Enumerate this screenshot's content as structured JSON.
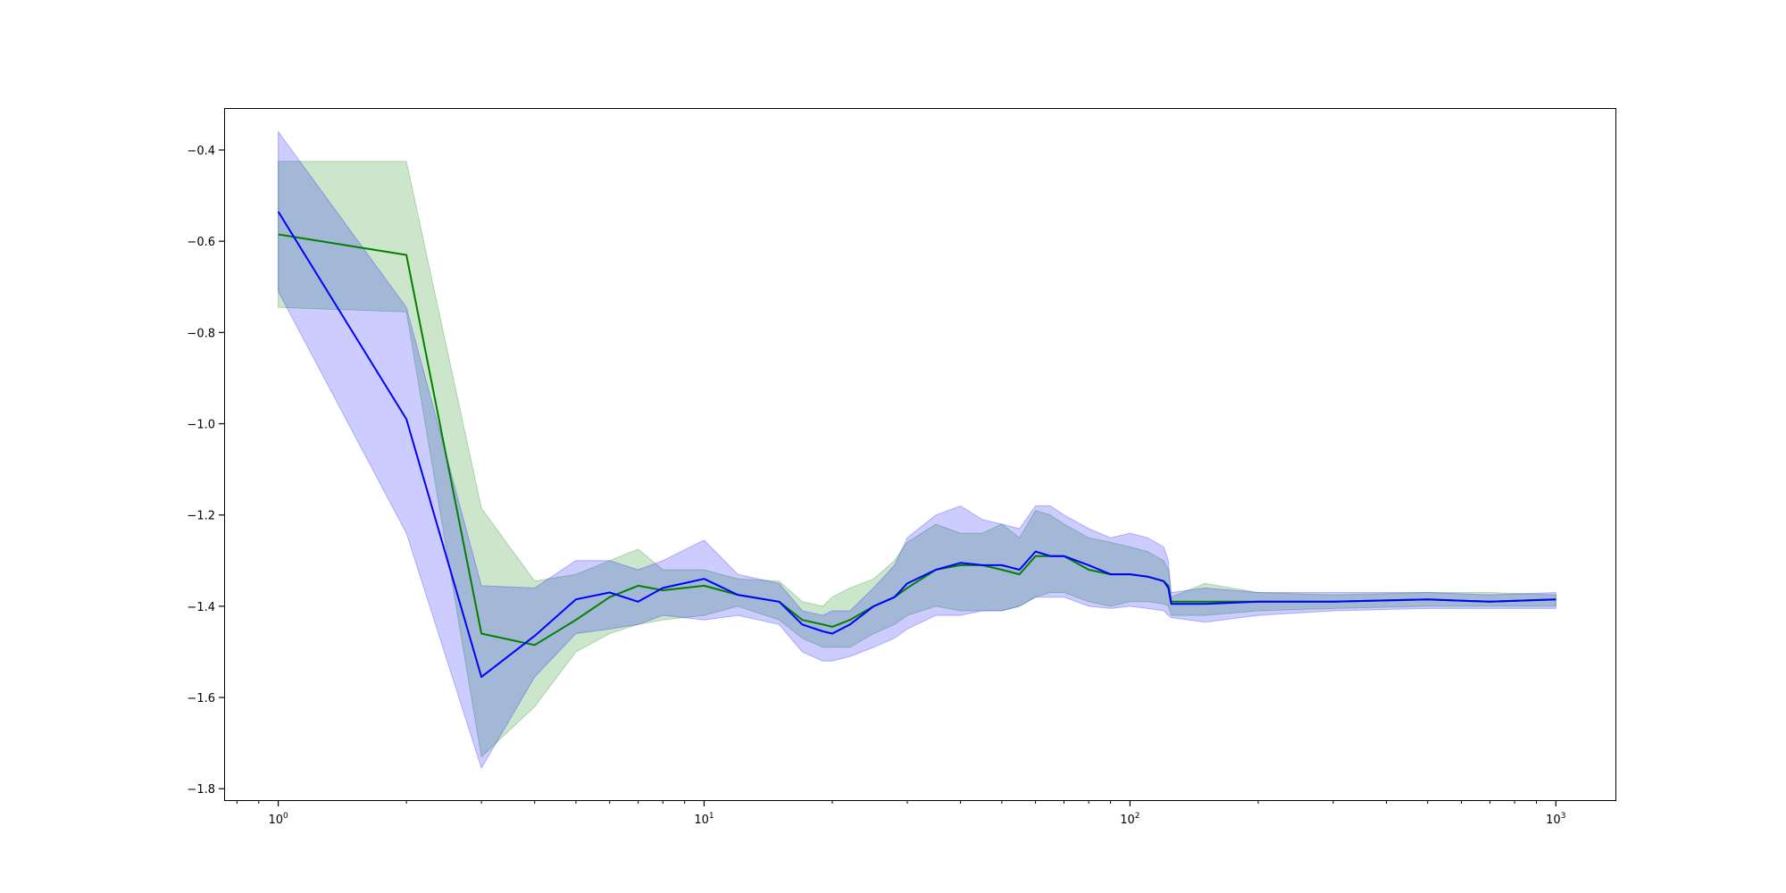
{
  "chart_data": {
    "type": "line",
    "title": "",
    "xlabel": "",
    "ylabel": "",
    "xscale": "log",
    "xlim": [
      0.75,
      1380
    ],
    "ylim": [
      -1.825,
      -0.31
    ],
    "grid": false,
    "legend": "none",
    "x_ticks": [
      {
        "base": "10",
        "exp": "0",
        "value": 1
      },
      {
        "base": "10",
        "exp": "1",
        "value": 10
      },
      {
        "base": "10",
        "exp": "2",
        "value": 100
      },
      {
        "base": "10",
        "exp": "3",
        "value": 1000
      }
    ],
    "y_ticks": [
      {
        "label": "−0.4",
        "value": -0.4
      },
      {
        "label": "−0.6",
        "value": -0.6
      },
      {
        "label": "−0.8",
        "value": -0.8
      },
      {
        "label": "−1.0",
        "value": -1.0
      },
      {
        "label": "−1.2",
        "value": -1.2
      },
      {
        "label": "−1.4",
        "value": -1.4
      },
      {
        "label": "−1.6",
        "value": -1.6
      },
      {
        "label": "−1.8",
        "value": -1.8
      }
    ],
    "series": [
      {
        "color": "#008000",
        "band_color": "#008000",
        "x": [
          1,
          2,
          3,
          4,
          5,
          6,
          7,
          8,
          10,
          12,
          15,
          17,
          19,
          20,
          22,
          25,
          28,
          30,
          35,
          40,
          45,
          50,
          55,
          60,
          65,
          70,
          80,
          90,
          100,
          110,
          120,
          123,
          125,
          150,
          200,
          300,
          500,
          700,
          1000
        ],
        "values": [
          -0.585,
          -0.63,
          -1.46,
          -1.485,
          -1.43,
          -1.38,
          -1.355,
          -1.365,
          -1.355,
          -1.375,
          -1.39,
          -1.43,
          -1.44,
          -1.445,
          -1.43,
          -1.4,
          -1.38,
          -1.36,
          -1.32,
          -1.31,
          -1.31,
          -1.32,
          -1.33,
          -1.29,
          -1.29,
          -1.29,
          -1.32,
          -1.33,
          -1.33,
          -1.335,
          -1.345,
          -1.355,
          -1.39,
          -1.39,
          -1.39,
          -1.39,
          -1.385,
          -1.39,
          -1.385
        ],
        "upper": [
          -0.425,
          -0.425,
          -1.185,
          -1.345,
          -1.33,
          -1.3,
          -1.275,
          -1.32,
          -1.32,
          -1.34,
          -1.345,
          -1.39,
          -1.4,
          -1.38,
          -1.36,
          -1.34,
          -1.3,
          -1.26,
          -1.22,
          -1.24,
          -1.24,
          -1.22,
          -1.25,
          -1.19,
          -1.2,
          -1.22,
          -1.25,
          -1.26,
          -1.27,
          -1.28,
          -1.3,
          -1.32,
          -1.38,
          -1.35,
          -1.37,
          -1.375,
          -1.37,
          -1.37,
          -1.375
        ],
        "lower": [
          -0.745,
          -0.755,
          -1.73,
          -1.62,
          -1.5,
          -1.46,
          -1.44,
          -1.43,
          -1.42,
          -1.4,
          -1.43,
          -1.47,
          -1.49,
          -1.49,
          -1.49,
          -1.46,
          -1.44,
          -1.42,
          -1.4,
          -1.41,
          -1.41,
          -1.41,
          -1.4,
          -1.38,
          -1.37,
          -1.37,
          -1.39,
          -1.4,
          -1.39,
          -1.39,
          -1.395,
          -1.4,
          -1.42,
          -1.42,
          -1.41,
          -1.405,
          -1.4,
          -1.4,
          -1.4
        ]
      },
      {
        "color": "#0000ff",
        "band_color": "#0000ff",
        "x": [
          1,
          2,
          3,
          4,
          5,
          6,
          7,
          8,
          10,
          12,
          15,
          17,
          19,
          20,
          22,
          25,
          28,
          30,
          35,
          40,
          45,
          50,
          55,
          60,
          65,
          70,
          80,
          90,
          100,
          110,
          120,
          123,
          125,
          150,
          200,
          300,
          500,
          700,
          1000
        ],
        "values": [
          -0.535,
          -0.99,
          -1.555,
          -1.465,
          -1.385,
          -1.37,
          -1.39,
          -1.36,
          -1.34,
          -1.375,
          -1.39,
          -1.44,
          -1.455,
          -1.46,
          -1.44,
          -1.4,
          -1.38,
          -1.35,
          -1.32,
          -1.305,
          -1.31,
          -1.31,
          -1.32,
          -1.28,
          -1.29,
          -1.29,
          -1.31,
          -1.33,
          -1.33,
          -1.335,
          -1.345,
          -1.36,
          -1.395,
          -1.395,
          -1.39,
          -1.39,
          -1.385,
          -1.39,
          -1.385
        ],
        "upper": [
          -0.36,
          -0.745,
          -1.355,
          -1.36,
          -1.3,
          -1.3,
          -1.32,
          -1.3,
          -1.255,
          -1.33,
          -1.35,
          -1.41,
          -1.42,
          -1.41,
          -1.41,
          -1.36,
          -1.31,
          -1.25,
          -1.2,
          -1.18,
          -1.21,
          -1.22,
          -1.23,
          -1.18,
          -1.18,
          -1.2,
          -1.23,
          -1.25,
          -1.24,
          -1.25,
          -1.27,
          -1.3,
          -1.37,
          -1.36,
          -1.37,
          -1.37,
          -1.37,
          -1.375,
          -1.37
        ],
        "lower": [
          -0.71,
          -1.24,
          -1.755,
          -1.555,
          -1.46,
          -1.45,
          -1.44,
          -1.42,
          -1.43,
          -1.42,
          -1.44,
          -1.5,
          -1.52,
          -1.52,
          -1.51,
          -1.49,
          -1.47,
          -1.45,
          -1.42,
          -1.42,
          -1.41,
          -1.41,
          -1.4,
          -1.38,
          -1.38,
          -1.38,
          -1.4,
          -1.405,
          -1.4,
          -1.405,
          -1.41,
          -1.42,
          -1.425,
          -1.435,
          -1.42,
          -1.41,
          -1.405,
          -1.405,
          -1.405
        ]
      }
    ]
  }
}
